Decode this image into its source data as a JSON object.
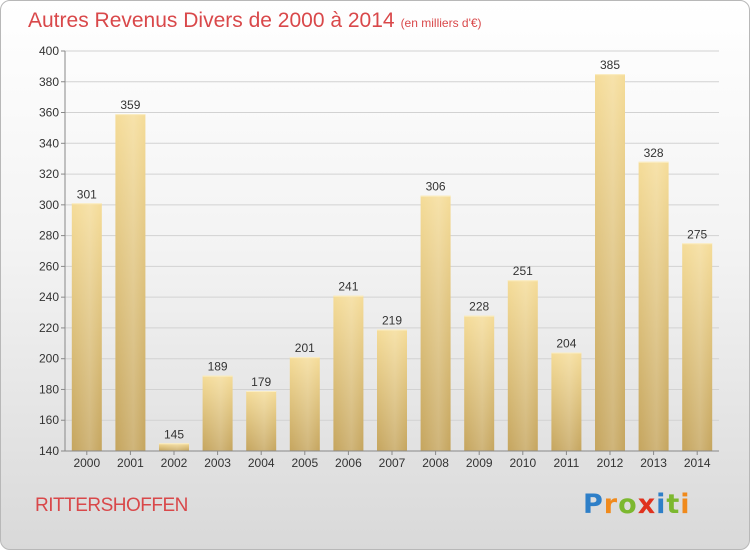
{
  "header": {
    "title": "Autres Revenus Divers de 2000 à 2014",
    "unit": "(en milliers d'€)"
  },
  "footer": {
    "place": "RITTERSHOFFEN",
    "logo_letters": [
      "P",
      "r",
      "o",
      "x",
      "i",
      "t",
      "i"
    ],
    "logo_colors": [
      "#2e7fc8",
      "#f08a1c",
      "#7cb82f",
      "#e0321e",
      "#2e7fc8",
      "#7cb82f",
      "#f08a1c"
    ]
  },
  "colors": {
    "bar_top": "#f5dc98",
    "bar_bottom": "#c5a55e",
    "title": "#d9484a"
  },
  "chart_data": {
    "type": "bar",
    "title": "Autres Revenus Divers de 2000 à 2014",
    "subtitle": "(en milliers d'€)",
    "xlabel": "",
    "ylabel": "",
    "categories": [
      "2000",
      "2001",
      "2002",
      "2003",
      "2004",
      "2005",
      "2006",
      "2007",
      "2008",
      "2009",
      "2010",
      "2011",
      "2012",
      "2013",
      "2014"
    ],
    "values": [
      301,
      359,
      145,
      189,
      179,
      201,
      241,
      219,
      306,
      228,
      251,
      204,
      385,
      328,
      275
    ],
    "ylim": [
      140,
      400
    ],
    "yticks": [
      140,
      160,
      180,
      200,
      220,
      240,
      260,
      280,
      300,
      320,
      340,
      360,
      380,
      400
    ],
    "grid": true,
    "legend": "none"
  }
}
